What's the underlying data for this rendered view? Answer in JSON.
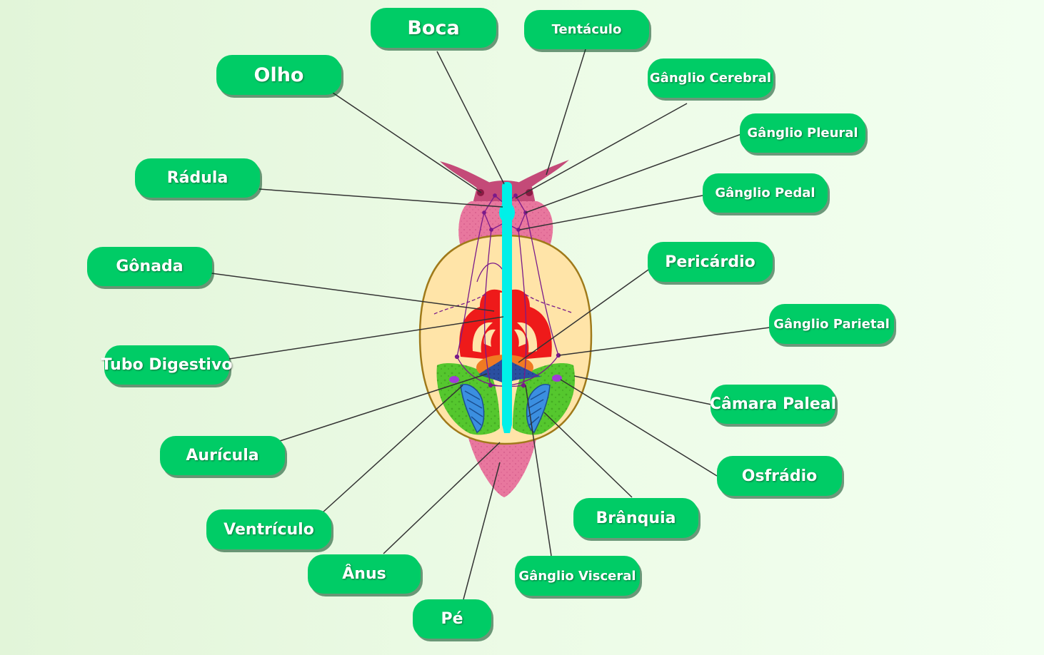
{
  "labels": {
    "boca": "Boca",
    "tentaculo": "Tentáculo",
    "olho": "Olho",
    "ganglio_cerebral": "Gânglio Cerebral",
    "ganglio_pleural": "Gânglio Pleural",
    "radula": "Rádula",
    "ganglio_pedal": "Gânglio Pedal",
    "gonada": "Gônada",
    "pericardio": "Pericárdio",
    "ganglio_parietal": "Gânglio Parietal",
    "tubo_digestivo": "Tubo Digestivo",
    "camara_paleal": "Câmara Paleal",
    "auricula": "Aurícula",
    "osfradio": "Osfrádio",
    "branquia": "Brânquia",
    "ventriculo": "Ventrículo",
    "ganglio_visceral": "Gânglio Visceral",
    "anus": "Ânus",
    "pe": "Pé"
  },
  "colors": {
    "label_bg": "#00cc66",
    "foot": "#e8779e",
    "head": "#c44a78",
    "mantle": "#ffe4a8",
    "digestive_tube": "#00f0e8",
    "gonad": "#ee1a1a",
    "mantle_cavity": "#55c72e",
    "gill": "#3b8fe0",
    "pericardium": "#f07a22",
    "heart": "#2a4fa0",
    "nerves": "#7a1a8a",
    "osphradium": "#a13bd8"
  }
}
